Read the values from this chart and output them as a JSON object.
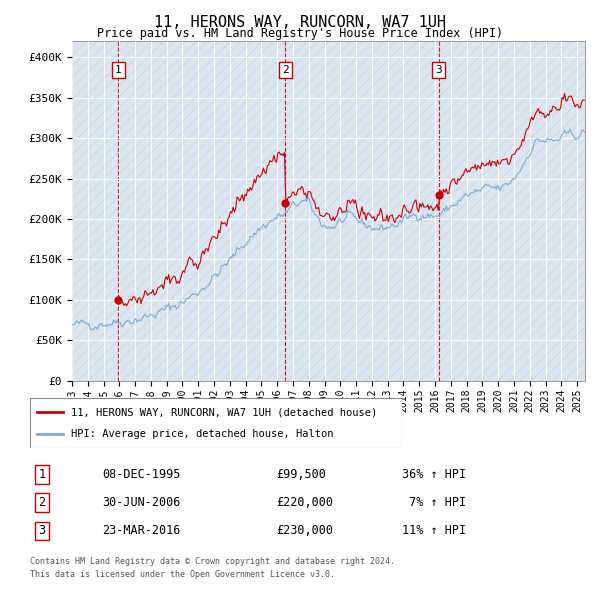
{
  "title": "11, HERONS WAY, RUNCORN, WA7 1UH",
  "subtitle": "Price paid vs. HM Land Registry's House Price Index (HPI)",
  "ylabel_ticks": [
    "£0",
    "£50K",
    "£100K",
    "£150K",
    "£200K",
    "£250K",
    "£300K",
    "£350K",
    "£400K"
  ],
  "ytick_values": [
    0,
    50000,
    100000,
    150000,
    200000,
    250000,
    300000,
    350000,
    400000
  ],
  "ylim": [
    0,
    420000
  ],
  "xlim_start": 1993.0,
  "xlim_end": 2025.5,
  "background_color": "#dce6f0",
  "hatch_color": "#c0d0e0",
  "sale_color": "#cc0000",
  "hpi_color": "#7aadd4",
  "legend_label_sale": "11, HERONS WAY, RUNCORN, WA7 1UH (detached house)",
  "legend_label_hpi": "HPI: Average price, detached house, Halton",
  "transactions": [
    {
      "num": 1,
      "date": "08-DEC-1995",
      "price": 99500,
      "year": 1995.917,
      "pct": "36% ↑ HPI"
    },
    {
      "num": 2,
      "date": "30-JUN-2006",
      "price": 220000,
      "year": 2006.5,
      "pct": "7% ↑ HPI"
    },
    {
      "num": 3,
      "date": "23-MAR-2016",
      "price": 230000,
      "year": 2016.222,
      "pct": "11% ↑ HPI"
    }
  ],
  "footer1": "Contains HM Land Registry data © Crown copyright and database right 2024.",
  "footer2": "This data is licensed under the Open Government Licence v3.0.",
  "xtick_years": [
    1993,
    1994,
    1995,
    1996,
    1997,
    1998,
    1999,
    2000,
    2001,
    2002,
    2003,
    2004,
    2005,
    2006,
    2007,
    2008,
    2009,
    2010,
    2011,
    2012,
    2013,
    2014,
    2015,
    2016,
    2017,
    2018,
    2019,
    2020,
    2021,
    2022,
    2023,
    2024,
    2025
  ]
}
